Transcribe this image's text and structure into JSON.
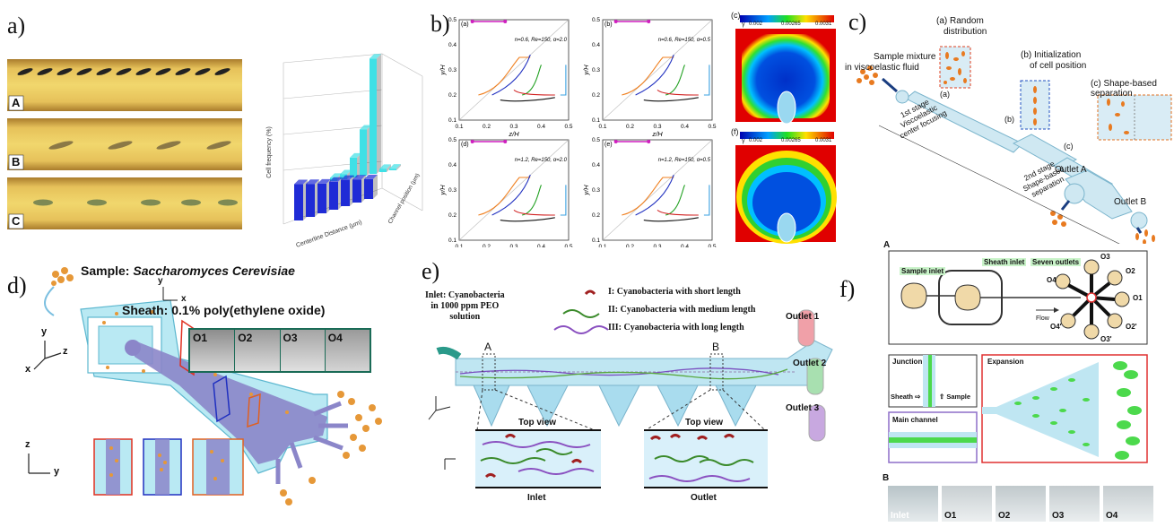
{
  "panels": {
    "a": {
      "label": "a)",
      "strips": [
        "A",
        "B",
        "C"
      ],
      "chart_data": {
        "type": "bar3d",
        "title": "",
        "xlabel": "Centerline Distance (μm)",
        "ylabel": "Channel position (μm)",
        "zlabel": "Cell frequency (%)",
        "back_series": [
          2,
          3,
          12,
          28,
          70,
          2,
          1
        ],
        "front_series": [
          22,
          20,
          18,
          17,
          16,
          14,
          12
        ]
      }
    },
    "b": {
      "label": "b)",
      "subplots": [
        {
          "id": "(a)",
          "params": "n=0.6, Re=150, α=2.0"
        },
        {
          "id": "(b)",
          "params": "n=0.6, Re=150, α=0.5"
        },
        {
          "id": "(d)",
          "params": "n=1.2, Re=150, α=2.0"
        },
        {
          "id": "(e)",
          "params": "n=1.2, Re=150, α=0.5"
        }
      ],
      "xlabel": "z/H",
      "ylabel": "y/H",
      "xticks": [
        "0.1",
        "0.2",
        "0.3",
        "0.4",
        "0.5"
      ],
      "yticks": [
        "0.1",
        "0.2",
        "0.3",
        "0.4",
        "0.5"
      ],
      "contour_c": {
        "id": "(c)",
        "sym": "γ",
        "ticks": [
          "0.002",
          "0.00265",
          "0.0031"
        ]
      },
      "contour_f": {
        "id": "(f)",
        "sym": "γ",
        "ticks": [
          "0.002",
          "0.00265",
          "0.0031"
        ]
      }
    },
    "c": {
      "label": "c)",
      "inset_a": [
        "(a) Random",
        "distribution"
      ],
      "inset_b": [
        "(b) Initialization",
        "of cell position"
      ],
      "inset_c": "(c) Shape-based separation",
      "sample": [
        "Sample mixture",
        "in viscoelastic fluid"
      ],
      "mark_a": "(a)",
      "mark_b": "(b)",
      "mark_c": "(c)",
      "stage1": [
        "1st stage",
        "Viscoelastic",
        "center focusing"
      ],
      "stage2": [
        "2nd stage",
        "Shape-based",
        "separation"
      ],
      "outlet_a": "Outlet A",
      "outlet_b": "Outlet B"
    },
    "d": {
      "label": "d)",
      "sample_prefix": "Sample: ",
      "sample_name": "Saccharomyces Cerevisiae",
      "sheath": "Sheath: 0.1% poly(ethylene oxide)",
      "outlets": [
        "O1",
        "O2",
        "O3",
        "O4"
      ],
      "axes": {
        "y": "y",
        "z": "z",
        "x": "x"
      }
    },
    "e": {
      "label": "e)",
      "inlet": [
        "Inlet: Cyanobacteria",
        "in 1000 ppm PEO",
        "solution"
      ],
      "legend": [
        "I: Cyanobacteria with short length",
        "II: Cyanobacteria with medium length",
        "III: Cyanobacteria with long length"
      ],
      "outlets": [
        "Outlet 1",
        "Outlet 2",
        "Outlet 3"
      ],
      "section_a": "A",
      "section_b": "B",
      "top_view": "Top view",
      "inlet_label": "Inlet",
      "outlet_label": "Outlet"
    },
    "f": {
      "label": "f)",
      "A": {
        "label": "A",
        "sample_inlet": "Sample inlet",
        "sheath_inlet": "Sheath inlet",
        "seven_outlets": "Seven outlets",
        "flow": "Flow",
        "outlets": [
          "O3",
          "O2",
          "O1",
          "O2'",
          "O3'",
          "O4'",
          "O4"
        ],
        "junction": "Junction",
        "expansion": "Expansion",
        "main_channel": "Main channel",
        "sheath": "Sheath ⇨",
        "sample": "⇧ Sample"
      },
      "B": {
        "label": "B",
        "tiles": [
          "Inlet",
          "O1",
          "O2",
          "O3",
          "O4"
        ]
      }
    }
  },
  "colors": {
    "cyan_channel": "#b9e9f3",
    "purple_region": "#8b86c9",
    "orange_cells": "#e6912e",
    "green_expansion": "#2bd13a",
    "bar_blue": "#1f2bd6",
    "bar_cyan": "#3fe0e6"
  }
}
